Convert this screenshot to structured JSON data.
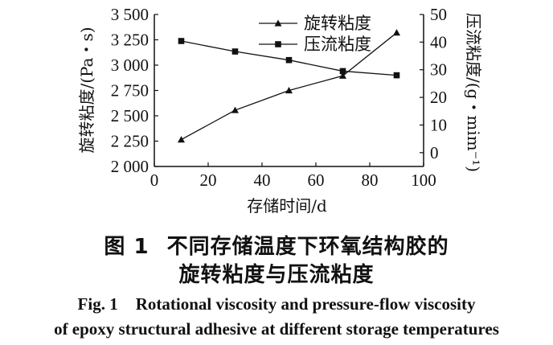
{
  "chart_data": {
    "type": "line",
    "xlabel": "存储时间/d",
    "ylabel_left": "旋转粘度/(Pa・s)",
    "ylabel_right": "压流粘度/(g・mim⁻¹)",
    "xlim": [
      0,
      100
    ],
    "xticks": [
      "0",
      "20",
      "40",
      "60",
      "80",
      "100"
    ],
    "ylim_left": [
      2000,
      3500
    ],
    "yticks_left": [
      "2 000",
      "2 250",
      "2 500",
      "2 750",
      "3 000",
      "3 250",
      "3 500"
    ],
    "ylim_right": [
      -5,
      50
    ],
    "yticks_right": [
      "0",
      "10",
      "20",
      "30",
      "40",
      "50"
    ],
    "grid": false,
    "legend_position": "top-right",
    "series": [
      {
        "name": "旋转粘度",
        "axis": "left",
        "marker": "triangle",
        "x": [
          10,
          30,
          50,
          70,
          90
        ],
        "y": [
          2265,
          2555,
          2750,
          2895,
          3320
        ]
      },
      {
        "name": "压流粘度",
        "axis": "right",
        "marker": "square",
        "x": [
          10,
          30,
          50,
          70,
          90
        ],
        "y": [
          40.4,
          36.6,
          33.5,
          29.5,
          28.0
        ]
      }
    ]
  },
  "caption": {
    "zh_fig_no": "图 1",
    "zh_line1": "不同存储温度下环氧结构胶的",
    "zh_line2": "旋转粘度与压流粘度",
    "en_fig_no": "Fig. 1",
    "en_line1": "Rotational viscosity and pressure-flow viscosity",
    "en_line2": "of epoxy structural adhesive at different storage temperatures"
  }
}
